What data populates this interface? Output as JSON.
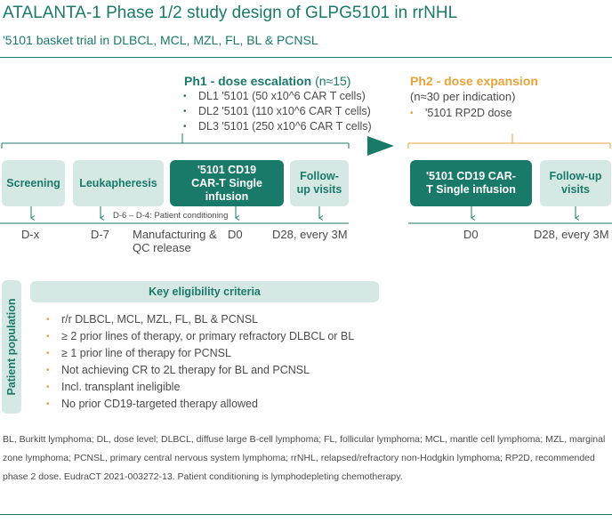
{
  "title": "ATALANTA-1 Phase 1/2 study design of GLPG5101 in rrNHL",
  "subtitle": "'5101 basket trial in DLBCL, MCL, MZL, FL, BL & PCNSL",
  "colors": {
    "teal": "#1a7a6a",
    "light_teal": "#d5e8e4",
    "orange": "#e8a33a",
    "text": "#4a4a4a"
  },
  "phase1": {
    "heading": "Ph1 - dose escalation",
    "heading_note": "(n≈15)",
    "doses": [
      "DL1 '5101 (50 x10^6 CAR T cells)",
      "DL2 '5101 (110 x10^6 CAR T cells)",
      "DL3 '5101 (250 x10^6 CAR T cells)"
    ]
  },
  "phase2": {
    "heading": "Ph2 - dose expansion",
    "heading_note": "(n≈30 per indication)",
    "item": "'5101 RP2D dose"
  },
  "flow_ph1": {
    "steps": [
      "Screening",
      "Leukapheresis",
      "'5101 CD19 CAR-T Single infusion",
      "Follow-up visits"
    ],
    "conditioning": "D-6 – D-4: Patient conditioning",
    "timepoints": [
      "D-x",
      "D-7",
      "Manufacturing & QC release",
      "D0",
      "D28, every 3M"
    ]
  },
  "flow_ph2": {
    "steps": [
      "'5101 CD19 CAR-T Single infusion",
      "Follow-up visits"
    ],
    "timepoints": [
      "D0",
      "D28, every 3M"
    ]
  },
  "population_label": "Patient population",
  "criteria": {
    "heading": "Key eligibility criteria",
    "items": [
      "r/r DLBCL, MCL, MZL, FL, BL & PCNSL",
      "≥ 2 prior lines of therapy, or primary refractory DLBCL or BL",
      "≥ 1 prior line of therapy for PCNSL",
      "Not achieving CR to 2L therapy for BL and PCNSL",
      "Incl. transplant ineligible",
      "No prior CD19-targeted therapy allowed"
    ]
  },
  "footnote": "BL, Burkitt lymphoma; DL, dose level; DLBCL, diffuse large B-cell lymphoma; FL, follicular lymphoma; MCL, mantle cell lymphoma; MZL, marginal zone lymphoma; PCNSL, primary central nervous system lymphoma; rrNHL, relapsed/refractory non-Hodgkin lymphoma; RP2D, recommended phase 2 dose. EudraCT 2021-003272-13. Patient conditioning is lymphodepleting chemotherapy."
}
